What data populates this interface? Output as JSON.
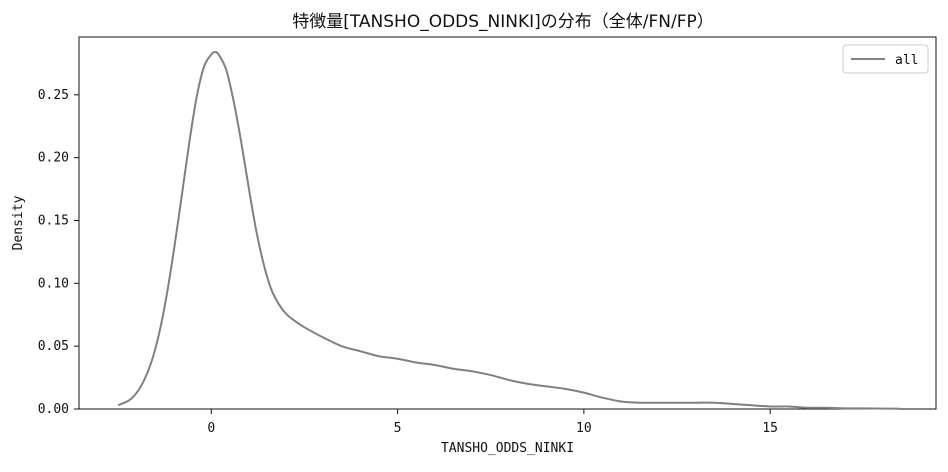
{
  "chart_data": {
    "type": "line",
    "title": "特徴量[TANSHO_ODDS_NINKI]の分布（全体/FN/FP）",
    "xlabel": "TANSHO_ODDS_NINKI",
    "ylabel": "Density",
    "xlim": [
      -3.55,
      19.45
    ],
    "ylim": [
      0,
      0.296
    ],
    "x_ticks": [
      0,
      5,
      10,
      15
    ],
    "y_ticks": [
      0.0,
      0.05,
      0.1,
      0.15,
      0.2,
      0.25
    ],
    "x_tick_labels": [
      "0",
      "5",
      "10",
      "15"
    ],
    "y_tick_labels": [
      "0.00",
      "0.05",
      "0.10",
      "0.15",
      "0.20",
      "0.25"
    ],
    "legend_position": "top-right",
    "grid": false,
    "series": [
      {
        "name": "all",
        "color": "#808080",
        "x": [
          -2.5,
          -2.2,
          -2.0,
          -1.8,
          -1.6,
          -1.4,
          -1.2,
          -1.0,
          -0.8,
          -0.6,
          -0.4,
          -0.2,
          0.0,
          0.1,
          0.2,
          0.4,
          0.6,
          0.8,
          1.0,
          1.2,
          1.4,
          1.6,
          1.8,
          2.0,
          2.2,
          2.5,
          3.0,
          3.5,
          4.0,
          4.5,
          5.0,
          5.5,
          6.0,
          6.5,
          7.0,
          7.5,
          8.0,
          8.5,
          9.0,
          9.5,
          10.0,
          10.5,
          11.0,
          11.5,
          12.0,
          12.5,
          13.0,
          13.5,
          14.0,
          14.5,
          15.0,
          15.5,
          16.0,
          16.5,
          17.0,
          17.5,
          18.0,
          18.5
        ],
        "y": [
          0.003,
          0.007,
          0.013,
          0.023,
          0.038,
          0.06,
          0.09,
          0.127,
          0.168,
          0.21,
          0.247,
          0.272,
          0.282,
          0.284,
          0.282,
          0.27,
          0.245,
          0.213,
          0.177,
          0.143,
          0.116,
          0.096,
          0.084,
          0.076,
          0.071,
          0.065,
          0.057,
          0.05,
          0.046,
          0.042,
          0.04,
          0.037,
          0.035,
          0.032,
          0.03,
          0.027,
          0.023,
          0.02,
          0.018,
          0.016,
          0.013,
          0.009,
          0.006,
          0.005,
          0.005,
          0.005,
          0.005,
          0.005,
          0.004,
          0.003,
          0.002,
          0.002,
          0.001,
          0.001,
          0.0005,
          0.0005,
          0.0003,
          0.0002
        ]
      }
    ]
  }
}
